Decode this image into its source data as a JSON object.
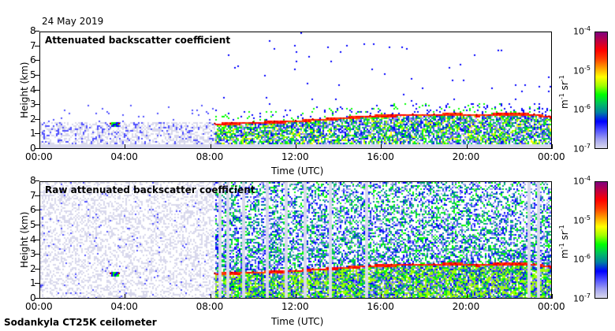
{
  "header": {
    "date": "24 May 2019"
  },
  "footer": {
    "instrument": "Sodankyla CT25K ceilometer"
  },
  "colorbar": {
    "unit_base": "m",
    "unit_exp1": "-1",
    "unit_mid": " sr",
    "unit_exp2": "-1",
    "ticks": [
      {
        "base": "10",
        "exp": "-4"
      },
      {
        "base": "10",
        "exp": "-5"
      },
      {
        "base": "10",
        "exp": "-6"
      },
      {
        "base": "10",
        "exp": "-7"
      }
    ],
    "colors": [
      "#d8d8ec",
      "#a0a0f0",
      "#5050ff",
      "#0000ff",
      "#0080a0",
      "#00c060",
      "#00ff00",
      "#a0ff00",
      "#ffff00",
      "#ffa000",
      "#ff4000",
      "#ff0000",
      "#c00040",
      "#800080"
    ]
  },
  "chart_data": [
    {
      "type": "heatmap",
      "title": "Attenuated backscatter coefficient",
      "xlabel": "Time (UTC)",
      "ylabel": "Height (km)",
      "xlim": [
        0,
        24
      ],
      "ylim": [
        0,
        8
      ],
      "xticks": [
        "00:00",
        "04:00",
        "08:00",
        "12:00",
        "16:00",
        "20:00",
        "00:00"
      ],
      "yticks": [
        "0",
        "1",
        "2",
        "3",
        "4",
        "5",
        "6",
        "7",
        "8"
      ],
      "color_scale": "log",
      "clim": [
        1e-07,
        0.0001
      ],
      "cloud_layer": {
        "time_h": [
          3.3,
          3.7,
          8.2,
          9,
          10,
          11,
          12,
          12.8,
          13.5,
          14.5,
          15.5,
          16.5,
          17.5,
          18.5,
          19.5,
          20.5,
          21.5,
          22.5,
          23.2,
          23.9
        ],
        "height_km": [
          1.7,
          1.7,
          1.7,
          1.75,
          1.8,
          1.85,
          1.9,
          2.0,
          2.05,
          2.15,
          2.25,
          2.3,
          2.35,
          2.35,
          2.4,
          2.3,
          2.4,
          2.4,
          2.35,
          2.2
        ]
      }
    },
    {
      "type": "heatmap",
      "title": "Raw attenuated backscatter coefficient",
      "xlabel": "Time (UTC)",
      "ylabel": "Height (km)",
      "xlim": [
        0,
        24
      ],
      "ylim": [
        0,
        8
      ],
      "xticks": [
        "00:00",
        "04:00",
        "08:00",
        "12:00",
        "16:00",
        "20:00",
        "00:00"
      ],
      "yticks": [
        "0",
        "1",
        "2",
        "3",
        "4",
        "5",
        "6",
        "7",
        "8"
      ],
      "color_scale": "log",
      "clim": [
        1e-07,
        0.0001
      ],
      "cloud_layer": {
        "time_h": [
          3.3,
          3.7,
          8.2,
          9,
          10,
          11,
          12,
          12.8,
          13.5,
          14.5,
          15.5,
          16.5,
          17.5,
          18.5,
          19.5,
          20.5,
          21.5,
          22.5,
          23.2,
          23.9
        ],
        "height_km": [
          1.7,
          1.7,
          1.7,
          1.75,
          1.8,
          1.85,
          1.9,
          2.0,
          2.05,
          2.15,
          2.25,
          2.3,
          2.35,
          2.35,
          2.4,
          2.3,
          2.4,
          2.4,
          2.35,
          2.2
        ]
      }
    }
  ]
}
